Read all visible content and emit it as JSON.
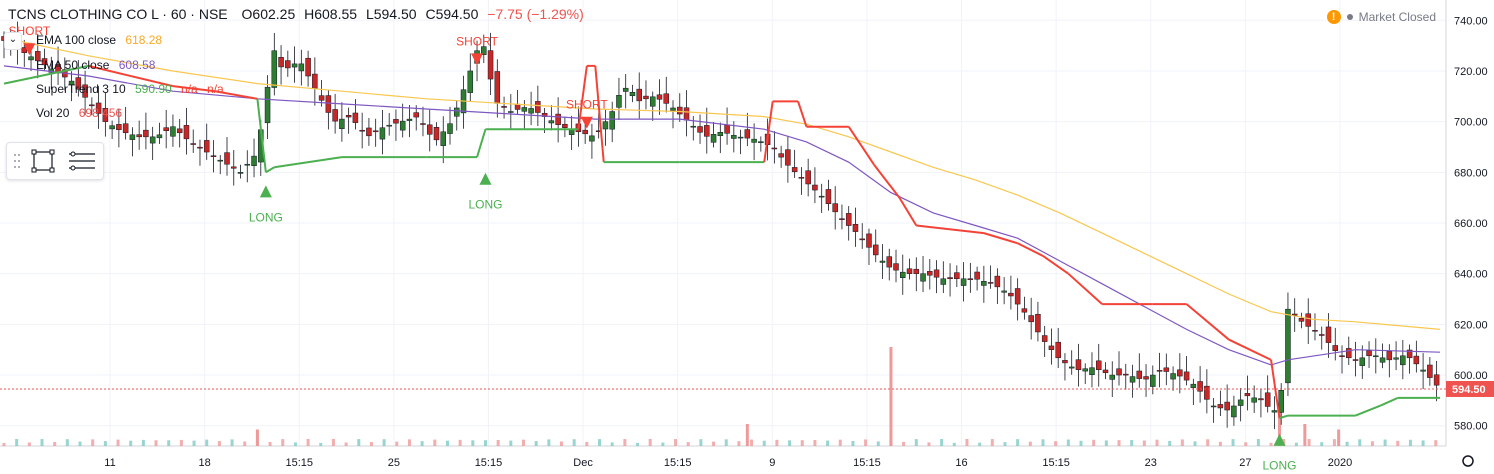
{
  "header": {
    "symbol": "TCNS CLOTHING CO L · 60 · NSE",
    "open": "O602.25",
    "high": "H608.55",
    "low": "L594.50",
    "close": "C594.50",
    "change": "−7.75 (−1.29%)"
  },
  "legend": {
    "ema100_label": "EMA 100 close",
    "ema100_value": "618.28",
    "ema50_label": "EMA 50 close",
    "ema50_value": "608.58",
    "supertrend_label": "SuperTrend 3 10",
    "supertrend_value": "590.90",
    "supertrend_na1": "n/a",
    "supertrend_na2": "n/a",
    "volume_label": "Vol 20",
    "volume_value": "698 456"
  },
  "status": {
    "market": "Market Closed",
    "warning_icon": "!"
  },
  "colors": {
    "up": "#26a69a",
    "down": "#ef5350",
    "up_body": "#2e7d32",
    "down_body": "#c62828",
    "ema100": "#f9c74f",
    "ema50": "#7e57c2",
    "supertrend_up": "#4caf50",
    "supertrend_down": "#f44336",
    "last_price": "#ef5350",
    "grid": "#f0f3fa"
  },
  "chart_data": {
    "type": "candlestick",
    "y_axis": {
      "min": 572,
      "max": 748,
      "ticks": [
        580,
        600,
        620,
        640,
        660,
        680,
        700,
        720,
        740
      ]
    },
    "x_axis": {
      "labels": [
        "11",
        "18",
        "15:15",
        "25",
        "15:15",
        "Dec",
        "15:15",
        "9",
        "15:15",
        "16",
        "15:15",
        "23",
        "27",
        "2020"
      ]
    },
    "last_price": 594.5,
    "signals": [
      {
        "type": "LONG",
        "price": 678
      },
      {
        "type": "SHORT",
        "price": 723
      },
      {
        "type": "LONG",
        "price": 683
      },
      {
        "type": "SHORT",
        "price": 698
      },
      {
        "type": "LONG",
        "price": 580
      },
      {
        "type": "SHORT",
        "price": 727
      }
    ],
    "price_path": [
      [
        0,
        732
      ],
      [
        3,
        726
      ],
      [
        5,
        722
      ],
      [
        8,
        716
      ],
      [
        10,
        708
      ],
      [
        12,
        700
      ],
      [
        14,
        696
      ],
      [
        16,
        694
      ],
      [
        18,
        694
      ],
      [
        20,
        698
      ],
      [
        22,
        692
      ],
      [
        24,
        688
      ],
      [
        26,
        684
      ],
      [
        28,
        680
      ],
      [
        30,
        688
      ],
      [
        31,
        710
      ],
      [
        32,
        728
      ],
      [
        33,
        720
      ],
      [
        35,
        724
      ],
      [
        37,
        712
      ],
      [
        39,
        700
      ],
      [
        41,
        702
      ],
      [
        43,
        694
      ],
      [
        45,
        698
      ],
      [
        47,
        700
      ],
      [
        49,
        702
      ],
      [
        51,
        692
      ],
      [
        53,
        700
      ],
      [
        55,
        718
      ],
      [
        56,
        728
      ],
      [
        57,
        730
      ],
      [
        58,
        708
      ],
      [
        60,
        704
      ],
      [
        62,
        706
      ],
      [
        64,
        702
      ],
      [
        66,
        698
      ],
      [
        68,
        696
      ],
      [
        70,
        694
      ],
      [
        72,
        704
      ],
      [
        73,
        712
      ],
      [
        74,
        714
      ],
      [
        75,
        708
      ],
      [
        77,
        710
      ],
      [
        79,
        706
      ],
      [
        81,
        700
      ],
      [
        83,
        694
      ],
      [
        85,
        696
      ],
      [
        87,
        694
      ],
      [
        89,
        693
      ],
      [
        91,
        690
      ],
      [
        93,
        682
      ],
      [
        95,
        676
      ],
      [
        97,
        670
      ],
      [
        99,
        662
      ],
      [
        101,
        656
      ],
      [
        103,
        648
      ],
      [
        105,
        642
      ],
      [
        107,
        640
      ],
      [
        109,
        640
      ],
      [
        111,
        638
      ],
      [
        113,
        638
      ],
      [
        115,
        638
      ],
      [
        117,
        636
      ],
      [
        119,
        632
      ],
      [
        121,
        624
      ],
      [
        123,
        614
      ],
      [
        125,
        606
      ],
      [
        127,
        602
      ],
      [
        129,
        603
      ],
      [
        131,
        600
      ],
      [
        133,
        600
      ],
      [
        135,
        598
      ],
      [
        137,
        602
      ],
      [
        139,
        600
      ],
      [
        141,
        596
      ],
      [
        143,
        588
      ],
      [
        145,
        586
      ],
      [
        147,
        592
      ],
      [
        149,
        590
      ],
      [
        150,
        586
      ],
      [
        151,
        586
      ],
      [
        152,
        626
      ],
      [
        154,
        620
      ],
      [
        156,
        616
      ],
      [
        158,
        608
      ],
      [
        160,
        606
      ],
      [
        162,
        608
      ],
      [
        164,
        606
      ],
      [
        166,
        608
      ],
      [
        168,
        602
      ],
      [
        170,
        594.5
      ]
    ],
    "ema50_path": [
      [
        0,
        722
      ],
      [
        10,
        718
      ],
      [
        20,
        712
      ],
      [
        30,
        709
      ],
      [
        40,
        707
      ],
      [
        50,
        705
      ],
      [
        60,
        703
      ],
      [
        70,
        701
      ],
      [
        80,
        701
      ],
      [
        90,
        697
      ],
      [
        95,
        692
      ],
      [
        100,
        684
      ],
      [
        105,
        672
      ],
      [
        110,
        664
      ],
      [
        115,
        659
      ],
      [
        120,
        654
      ],
      [
        125,
        645
      ],
      [
        130,
        636
      ],
      [
        135,
        627
      ],
      [
        140,
        618
      ],
      [
        145,
        610
      ],
      [
        150,
        604
      ],
      [
        152,
        606
      ],
      [
        160,
        610
      ],
      [
        170,
        609
      ]
    ],
    "ema100_path": [
      [
        0,
        733
      ],
      [
        10,
        726
      ],
      [
        20,
        720
      ],
      [
        30,
        715
      ],
      [
        40,
        712
      ],
      [
        50,
        709
      ],
      [
        60,
        707
      ],
      [
        70,
        705
      ],
      [
        80,
        704
      ],
      [
        90,
        702
      ],
      [
        95,
        699
      ],
      [
        100,
        694
      ],
      [
        105,
        688
      ],
      [
        110,
        682
      ],
      [
        115,
        677
      ],
      [
        120,
        671
      ],
      [
        125,
        664
      ],
      [
        130,
        656
      ],
      [
        135,
        648
      ],
      [
        140,
        640
      ],
      [
        145,
        632
      ],
      [
        150,
        625
      ],
      [
        155,
        622
      ],
      [
        160,
        621
      ],
      [
        170,
        618
      ]
    ],
    "supertrend_path": [
      [
        0,
        715
      ],
      [
        10,
        722
      ],
      [
        20,
        714
      ],
      [
        25,
        712
      ],
      [
        30,
        709
      ],
      [
        31,
        680
      ],
      [
        32,
        682
      ],
      [
        40,
        686
      ],
      [
        50,
        686
      ],
      [
        56,
        686
      ],
      [
        57,
        697
      ],
      [
        65,
        697
      ],
      [
        68,
        697
      ],
      [
        69,
        722
      ],
      [
        70,
        722
      ],
      [
        71,
        684
      ],
      [
        80,
        684
      ],
      [
        90,
        684
      ],
      [
        91,
        708
      ],
      [
        94,
        708
      ],
      [
        95,
        698
      ],
      [
        100,
        698
      ],
      [
        103,
        683
      ],
      [
        106,
        670
      ],
      [
        108,
        659
      ],
      [
        116,
        656
      ],
      [
        120,
        652
      ],
      [
        123,
        647
      ],
      [
        126,
        640
      ],
      [
        130,
        628
      ],
      [
        136,
        628
      ],
      [
        140,
        628
      ],
      [
        145,
        614
      ],
      [
        150,
        606
      ],
      [
        151,
        583
      ],
      [
        152,
        584
      ],
      [
        160,
        584
      ],
      [
        163,
        588
      ],
      [
        165,
        591
      ],
      [
        170,
        591
      ]
    ],
    "volume_spikes": [
      {
        "x": 30,
        "value": 0.15
      },
      {
        "x": 88,
        "value": 0.2
      },
      {
        "x": 105,
        "value": 0.9
      },
      {
        "x": 151,
        "value": 0.35
      },
      {
        "x": 154,
        "value": 0.2
      },
      {
        "x": 158,
        "value": 0.15
      }
    ]
  }
}
